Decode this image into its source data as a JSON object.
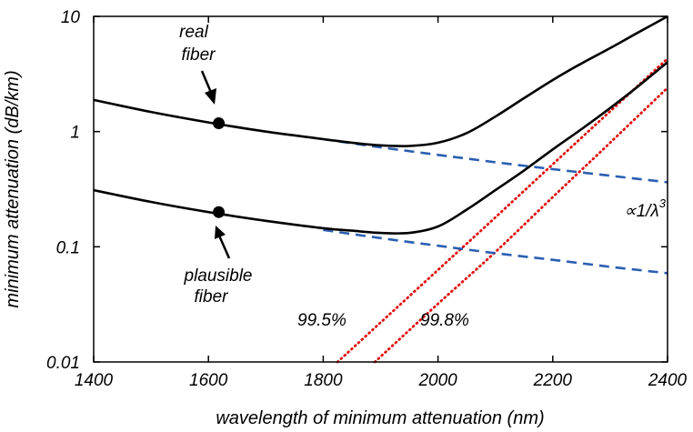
{
  "chart_data": {
    "type": "line",
    "xlabel": "wavelength of minimum attenuation (nm)",
    "ylabel": "minimum attenuation (dB/km)",
    "xlim": [
      1400,
      2400
    ],
    "ylim": [
      0.01,
      10
    ],
    "yscale": "log",
    "grid": false,
    "xticks": [
      1400,
      1600,
      1800,
      2000,
      2200,
      2400
    ],
    "yticks": [
      0.01,
      0.1,
      1,
      10
    ],
    "ytick_labels": [
      "0.01",
      "0.1",
      "1",
      "10"
    ],
    "series": [
      {
        "name": "real fiber",
        "style": "solid",
        "color": "#000000",
        "x": [
          1400,
          1500,
          1600,
          1700,
          1800,
          1850,
          1900,
          1950,
          2000,
          2050,
          2100,
          2150,
          2200,
          2250,
          2300,
          2350,
          2400
        ],
        "y": [
          1.88,
          1.48,
          1.2,
          1.0,
          0.86,
          0.8,
          0.76,
          0.75,
          0.8,
          0.97,
          1.35,
          1.95,
          2.8,
          3.9,
          5.3,
          7.3,
          10.0
        ]
      },
      {
        "name": "plausible fiber",
        "style": "solid",
        "color": "#000000",
        "x": [
          1400,
          1500,
          1600,
          1700,
          1800,
          1850,
          1900,
          1950,
          2000,
          2050,
          2100,
          2150,
          2200,
          2250,
          2300,
          2350,
          2400
        ],
        "y": [
          0.31,
          0.245,
          0.2,
          0.168,
          0.145,
          0.138,
          0.132,
          0.132,
          0.15,
          0.21,
          0.31,
          0.46,
          0.7,
          1.05,
          1.6,
          2.5,
          4.0
        ]
      },
      {
        "name": "∝1/λ³ (real)",
        "style": "dashed",
        "color": "#2a5fb0",
        "x": [
          1800,
          1900,
          2000,
          2100,
          2200,
          2300,
          2400
        ],
        "y": [
          0.86,
          0.73,
          0.628,
          0.542,
          0.472,
          0.414,
          0.363
        ]
      },
      {
        "name": "∝1/λ³ (plausible)",
        "style": "dashed",
        "color": "#2a5fb0",
        "x": [
          1800,
          1900,
          2000,
          2100,
          2200,
          2300,
          2400
        ],
        "y": [
          0.14,
          0.119,
          0.102,
          0.088,
          0.077,
          0.067,
          0.059
        ]
      },
      {
        "name": "99.5%",
        "style": "dotted",
        "color": "#e01010",
        "x": [
          1825,
          1900,
          2000,
          2100,
          2200,
          2300,
          2400
        ],
        "y": [
          0.01,
          0.022,
          0.063,
          0.18,
          0.52,
          1.5,
          4.3
        ]
      },
      {
        "name": "99.8%",
        "style": "dotted",
        "color": "#e01010",
        "x": [
          1890,
          2000,
          2100,
          2200,
          2300,
          2400
        ],
        "y": [
          0.01,
          0.032,
          0.09,
          0.27,
          0.8,
          2.4
        ]
      }
    ],
    "points": [
      {
        "series": "real fiber",
        "x": 1618,
        "y": 1.18
      },
      {
        "series": "plausible fiber",
        "x": 1618,
        "y": 0.2
      }
    ],
    "annotations": {
      "real_fiber_line1": "real",
      "real_fiber_line2": "fiber",
      "plausible_fiber_line1": "plausible",
      "plausible_fiber_line2": "fiber",
      "pct_995": "99.5%",
      "pct_998": "99.8%",
      "proportional": "∝1/λ",
      "proportional_exp": "3"
    }
  }
}
